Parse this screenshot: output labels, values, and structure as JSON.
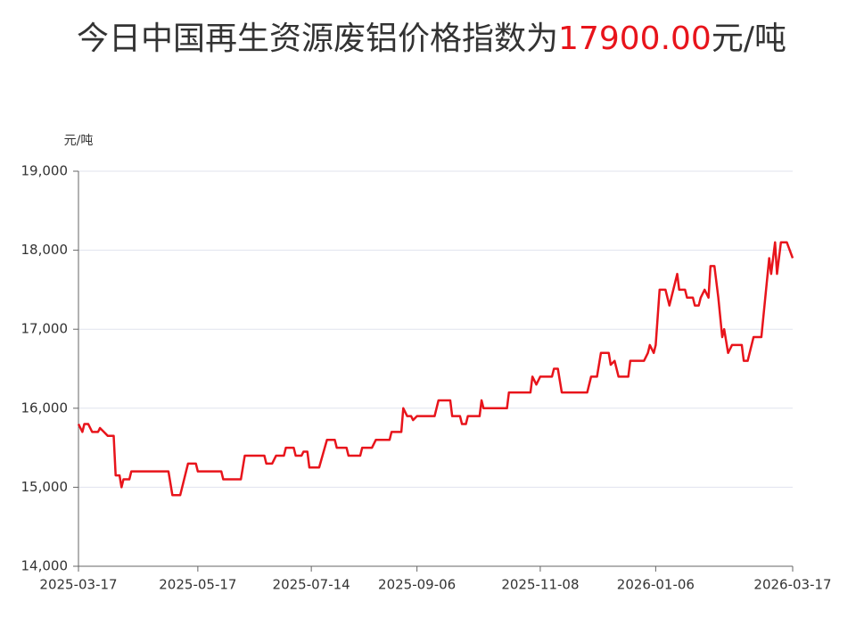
{
  "chart_data": {
    "type": "line",
    "title": "今日中国再生资源废铝价格指数为",
    "title_value": "17900.00",
    "title_unit": "元/吨",
    "y_label": "元/吨",
    "x": [
      "2025-03-17",
      "2025-03-19",
      "2025-03-20",
      "2025-03-22",
      "2025-03-24",
      "2025-03-27",
      "2025-03-28",
      "2025-03-30",
      "2025-04-01",
      "2025-04-04",
      "2025-04-05",
      "2025-04-07",
      "2025-04-08",
      "2025-04-09",
      "2025-04-12",
      "2025-04-13",
      "2025-05-02",
      "2025-05-04",
      "2025-05-08",
      "2025-05-12",
      "2025-05-16",
      "2025-05-17",
      "2025-05-29",
      "2025-05-30",
      "2025-06-08",
      "2025-06-10",
      "2025-06-20",
      "2025-06-21",
      "2025-06-24",
      "2025-06-26",
      "2025-06-30",
      "2025-07-01",
      "2025-07-05",
      "2025-07-06",
      "2025-07-09",
      "2025-07-10",
      "2025-07-12",
      "2025-07-13",
      "2025-07-18",
      "2025-07-22",
      "2025-07-26",
      "2025-07-27",
      "2025-08-01",
      "2025-08-02",
      "2025-08-08",
      "2025-08-09",
      "2025-08-14",
      "2025-08-16",
      "2025-08-23",
      "2025-08-24",
      "2025-08-29",
      "2025-08-30",
      "2025-09-01",
      "2025-09-03",
      "2025-09-04",
      "2025-09-06",
      "2025-09-15",
      "2025-09-17",
      "2025-09-23",
      "2025-09-24",
      "2025-09-28",
      "2025-09-29",
      "2025-10-01",
      "2025-10-02",
      "2025-10-08",
      "2025-10-09",
      "2025-10-10",
      "2025-10-22",
      "2025-10-23",
      "2025-11-03",
      "2025-11-04",
      "2025-11-06",
      "2025-11-08",
      "2025-11-14",
      "2025-11-15",
      "2025-11-17",
      "2025-11-19",
      "2025-12-02",
      "2025-12-04",
      "2025-12-07",
      "2025-12-09",
      "2025-12-13",
      "2025-12-14",
      "2025-12-16",
      "2025-12-18",
      "2025-12-23",
      "2025-12-24",
      "2025-12-31",
      "2026-01-02",
      "2026-01-03",
      "2026-01-05",
      "2026-01-06",
      "2026-01-08",
      "2026-01-11",
      "2026-01-13",
      "2026-01-15",
      "2026-01-17",
      "2026-01-18",
      "2026-01-21",
      "2026-01-22",
      "2026-01-25",
      "2026-01-26",
      "2026-01-28",
      "2026-01-29",
      "2026-01-31",
      "2026-02-02",
      "2026-02-03",
      "2026-02-05",
      "2026-02-07",
      "2026-02-09",
      "2026-02-10",
      "2026-02-12",
      "2026-02-14",
      "2026-02-19",
      "2026-02-20",
      "2026-02-22",
      "2026-02-25",
      "2026-03-01",
      "2026-03-05",
      "2026-03-06",
      "2026-03-08",
      "2026-03-09",
      "2026-03-11",
      "2026-03-14",
      "2026-03-17"
    ],
    "series": [
      {
        "name": "废铝价格指数",
        "color": "#e8141b",
        "values": [
          15800,
          15700,
          15800,
          15800,
          15700,
          15700,
          15750,
          15700,
          15650,
          15650,
          15150,
          15150,
          15000,
          15100,
          15100,
          15200,
          15200,
          14900,
          14900,
          15300,
          15300,
          15200,
          15200,
          15100,
          15100,
          15400,
          15400,
          15300,
          15300,
          15400,
          15400,
          15500,
          15500,
          15400,
          15400,
          15450,
          15450,
          15250,
          15250,
          15600,
          15600,
          15500,
          15500,
          15400,
          15400,
          15500,
          15500,
          15600,
          15600,
          15700,
          15700,
          16000,
          15900,
          15900,
          15850,
          15900,
          15900,
          16100,
          16100,
          15900,
          15900,
          15800,
          15800,
          15900,
          15900,
          16100,
          16000,
          16000,
          16200,
          16200,
          16400,
          16300,
          16400,
          16400,
          16500,
          16500,
          16200,
          16200,
          16400,
          16400,
          16700,
          16700,
          16550,
          16600,
          16400,
          16400,
          16600,
          16600,
          16700,
          16800,
          16700,
          16800,
          17500,
          17500,
          17300,
          17500,
          17700,
          17500,
          17500,
          17400,
          17400,
          17300,
          17300,
          17400,
          17500,
          17400,
          17800,
          17800,
          17400,
          16900,
          17000,
          16700,
          16800,
          16800,
          16600,
          16600,
          16900,
          16900,
          17900,
          17700,
          18100,
          17700,
          18100,
          18100,
          17900
        ]
      }
    ],
    "xlim": [
      "2025-03-17",
      "2026-03-17"
    ],
    "xticks": [
      "2025-03-17",
      "2025-05-17",
      "2025-07-14",
      "2025-09-06",
      "2025-11-08",
      "2026-01-06",
      "2026-03-17"
    ],
    "ylim": [
      14000,
      19000
    ],
    "yticks": [
      {
        "value": 14000,
        "label": "14,000"
      },
      {
        "value": 15000,
        "label": "15,000"
      },
      {
        "value": 16000,
        "label": "16,000"
      },
      {
        "value": 17000,
        "label": "17,000"
      },
      {
        "value": 18000,
        "label": "18,000"
      },
      {
        "value": 19000,
        "label": "19,000"
      }
    ],
    "grid": true
  }
}
